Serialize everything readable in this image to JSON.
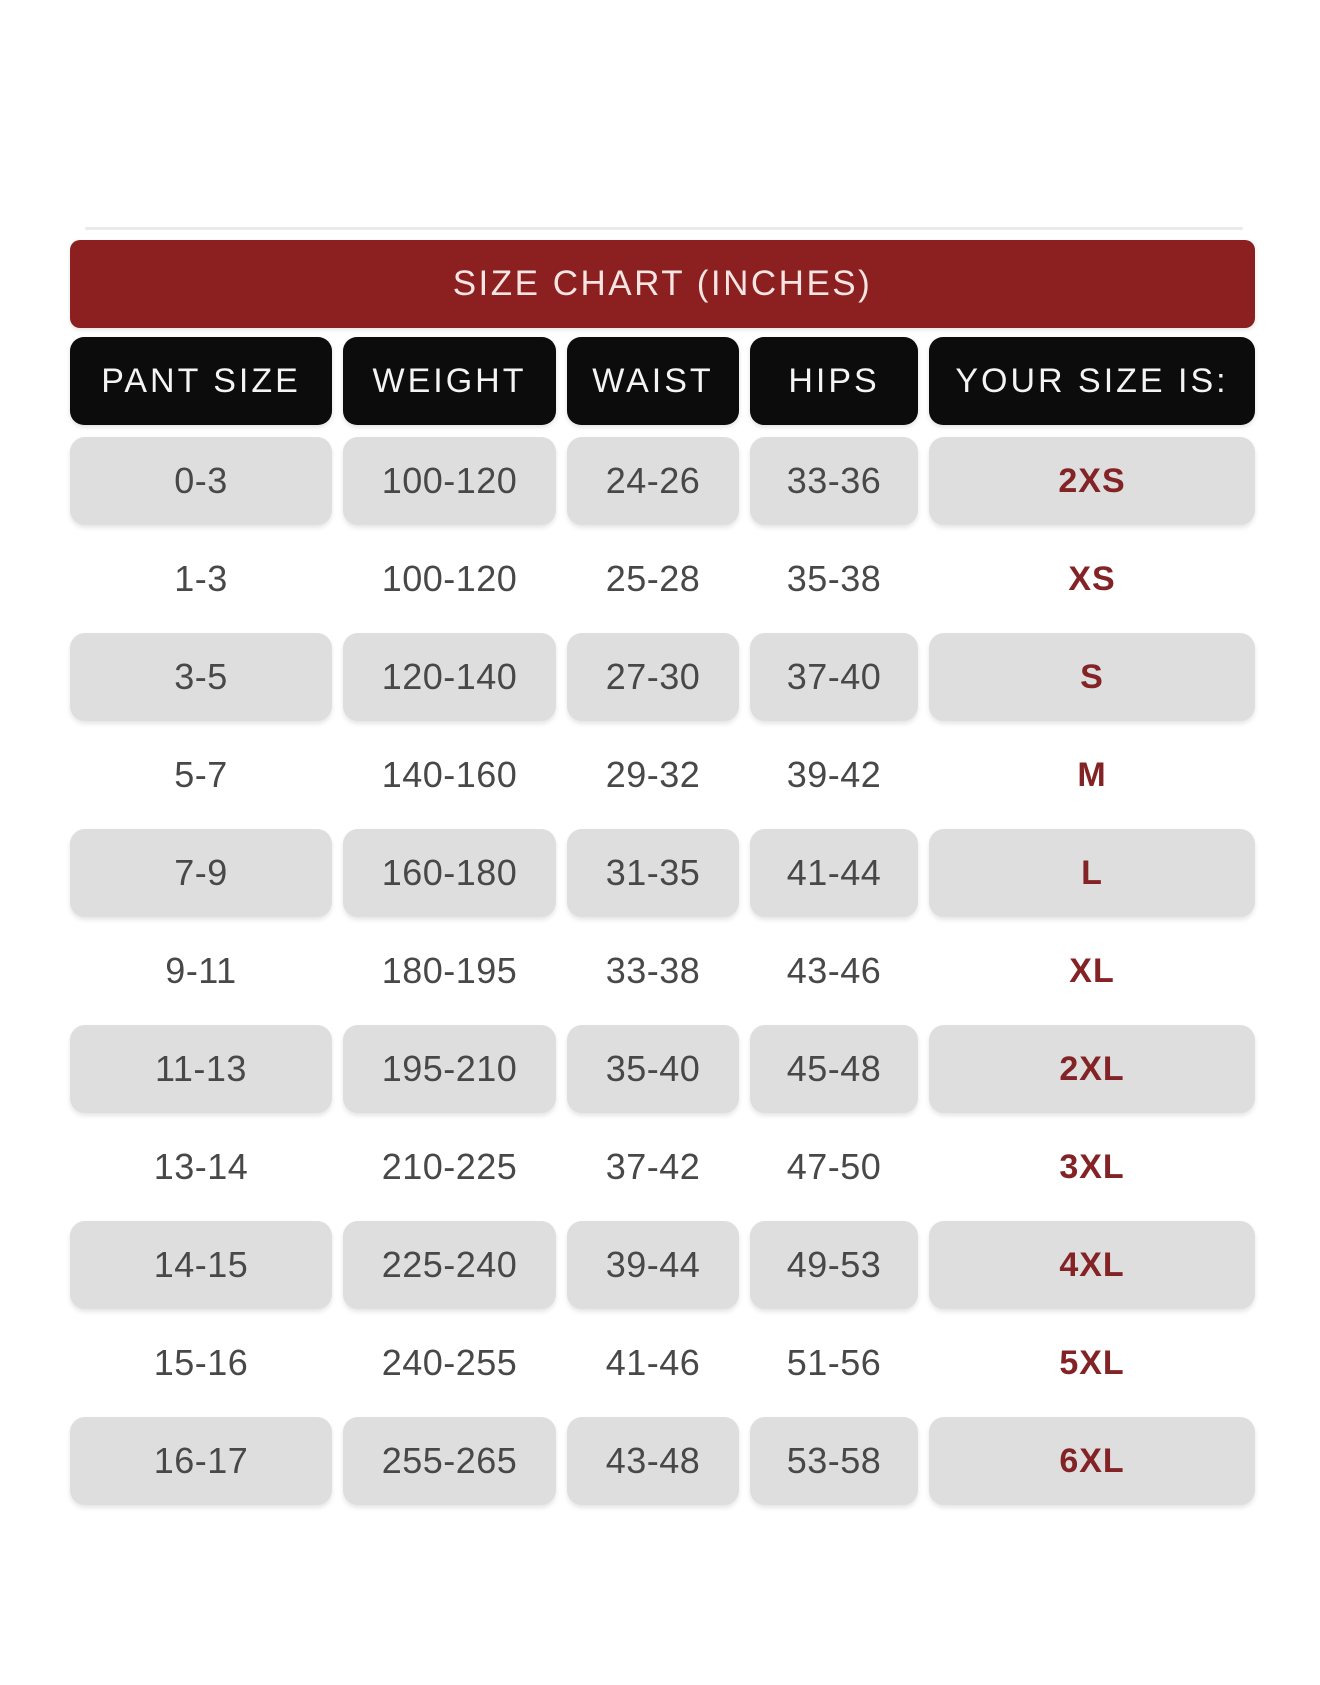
{
  "size_chart": {
    "title": "SIZE CHART (INCHES)",
    "columns": [
      {
        "key": "pant_size",
        "label": "PANT SIZE"
      },
      {
        "key": "weight",
        "label": "WEIGHT"
      },
      {
        "key": "waist",
        "label": "WAIST"
      },
      {
        "key": "hips",
        "label": "HIPS"
      },
      {
        "key": "size",
        "label": "YOUR SIZE IS:"
      }
    ],
    "rows": [
      {
        "pant_size": "0-3",
        "weight": "100-120",
        "waist": "24-26",
        "hips": "33-36",
        "size": "2XS",
        "shaded": true
      },
      {
        "pant_size": "1-3",
        "weight": "100-120",
        "waist": "25-28",
        "hips": "35-38",
        "size": "XS",
        "shaded": false
      },
      {
        "pant_size": "3-5",
        "weight": "120-140",
        "waist": "27-30",
        "hips": "37-40",
        "size": "S",
        "shaded": true
      },
      {
        "pant_size": "5-7",
        "weight": "140-160",
        "waist": "29-32",
        "hips": "39-42",
        "size": "M",
        "shaded": false
      },
      {
        "pant_size": "7-9",
        "weight": "160-180",
        "waist": "31-35",
        "hips": "41-44",
        "size": "L",
        "shaded": true
      },
      {
        "pant_size": "9-11",
        "weight": "180-195",
        "waist": "33-38",
        "hips": "43-46",
        "size": "XL",
        "shaded": false
      },
      {
        "pant_size": "11-13",
        "weight": "195-210",
        "waist": "35-40",
        "hips": "45-48",
        "size": "2XL",
        "shaded": true
      },
      {
        "pant_size": "13-14",
        "weight": "210-225",
        "waist": "37-42",
        "hips": "47-50",
        "size": "3XL",
        "shaded": false
      },
      {
        "pant_size": "14-15",
        "weight": "225-240",
        "waist": "39-44",
        "hips": "49-53",
        "size": "4XL",
        "shaded": true
      },
      {
        "pant_size": "15-16",
        "weight": "240-255",
        "waist": "41-46",
        "hips": "51-56",
        "size": "5XL",
        "shaded": false
      },
      {
        "pant_size": "16-17",
        "weight": "255-265",
        "waist": "43-48",
        "hips": "53-58",
        "size": "6XL",
        "shaded": true
      }
    ]
  },
  "colors": {
    "header_bg": "#8C1F1F",
    "header_text": "#F6E4E2",
    "column_header_bg": "#0C0C0C",
    "column_header_text": "#F4F4F4",
    "row_shade": "#DEDEDE",
    "cell_text": "#484848",
    "size_text": "#832326",
    "page_bg": "#FFFFFF"
  },
  "chart_data": {
    "type": "table",
    "title": "SIZE CHART (INCHES)",
    "columns": [
      "PANT SIZE",
      "WEIGHT",
      "WAIST",
      "HIPS",
      "YOUR SIZE IS:"
    ],
    "rows": [
      [
        "0-3",
        "100-120",
        "24-26",
        "33-36",
        "2XS"
      ],
      [
        "1-3",
        "100-120",
        "25-28",
        "35-38",
        "XS"
      ],
      [
        "3-5",
        "120-140",
        "27-30",
        "37-40",
        "S"
      ],
      [
        "5-7",
        "140-160",
        "29-32",
        "39-42",
        "M"
      ],
      [
        "7-9",
        "160-180",
        "31-35",
        "41-44",
        "L"
      ],
      [
        "9-11",
        "180-195",
        "33-38",
        "43-46",
        "XL"
      ],
      [
        "11-13",
        "195-210",
        "35-40",
        "45-48",
        "2XL"
      ],
      [
        "13-14",
        "210-225",
        "37-42",
        "47-50",
        "3XL"
      ],
      [
        "14-15",
        "225-240",
        "39-44",
        "49-53",
        "4XL"
      ],
      [
        "15-16",
        "240-255",
        "41-46",
        "51-56",
        "5XL"
      ],
      [
        "16-17",
        "255-265",
        "43-48",
        "53-58",
        "6XL"
      ]
    ],
    "layout_hints": {
      "shaded_row_indices": [
        0,
        2,
        4,
        6,
        8,
        10
      ],
      "units": "inches (waist/hips), pounds (weight)"
    }
  }
}
